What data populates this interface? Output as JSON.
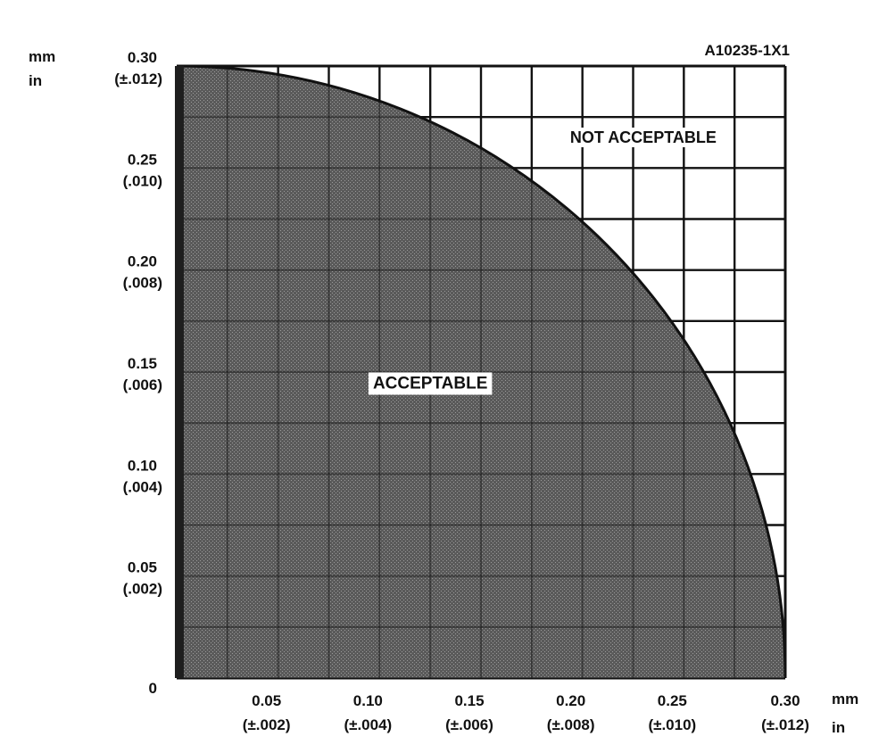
{
  "figure_id": "A10235-1X1",
  "colors": {
    "background": "#ffffff",
    "acceptable_fill": "#585858",
    "grid": "#111111",
    "boundary": "#111111"
  },
  "chart_data": {
    "type": "area",
    "title": "",
    "units": {
      "y_primary": "mm",
      "y_secondary": "in",
      "x_primary": "mm",
      "x_secondary": "in"
    },
    "xlim": [
      0,
      0.3
    ],
    "ylim": [
      0,
      0.3
    ],
    "grid": true,
    "grid_step": 0.025,
    "x_ticks": [
      {
        "value": 0.05,
        "label": "0.05",
        "sublabel": "(±.002)"
      },
      {
        "value": 0.1,
        "label": "0.10",
        "sublabel": "(±.004)"
      },
      {
        "value": 0.15,
        "label": "0.15",
        "sublabel": "(±.006)"
      },
      {
        "value": 0.2,
        "label": "0.20",
        "sublabel": "(±.008)"
      },
      {
        "value": 0.25,
        "label": "0.25",
        "sublabel": "(±.010)"
      },
      {
        "value": 0.3,
        "label": "0.30",
        "sublabel": "(±.012)"
      }
    ],
    "y_ticks": [
      {
        "value": 0,
        "label": "0",
        "sublabel": ""
      },
      {
        "value": 0.05,
        "label": "0.05",
        "sublabel": "(.002)"
      },
      {
        "value": 0.1,
        "label": "0.10",
        "sublabel": "(.004)"
      },
      {
        "value": 0.15,
        "label": "0.15",
        "sublabel": "(.006)"
      },
      {
        "value": 0.2,
        "label": "0.20",
        "sublabel": "(.008)"
      },
      {
        "value": 0.25,
        "label": "0.25",
        "sublabel": "(.010)"
      },
      {
        "value": 0.3,
        "label": "0.30",
        "sublabel": "(±.012)"
      }
    ],
    "boundary": {
      "shape": "quarter-circle",
      "radius": 0.3,
      "x": [
        0,
        0.05,
        0.1,
        0.15,
        0.2,
        0.25,
        0.3
      ],
      "y": [
        0.3,
        0.296,
        0.283,
        0.26,
        0.224,
        0.166,
        0
      ]
    },
    "regions": [
      {
        "name": "ACCEPTABLE",
        "label": "ACCEPTABLE",
        "inside_boundary": true,
        "label_at": [
          0.125,
          0.145
        ]
      },
      {
        "name": "NOT ACCEPTABLE",
        "label": "NOT ACCEPTABLE",
        "inside_boundary": false,
        "label_at": [
          0.23,
          0.265
        ]
      }
    ]
  }
}
